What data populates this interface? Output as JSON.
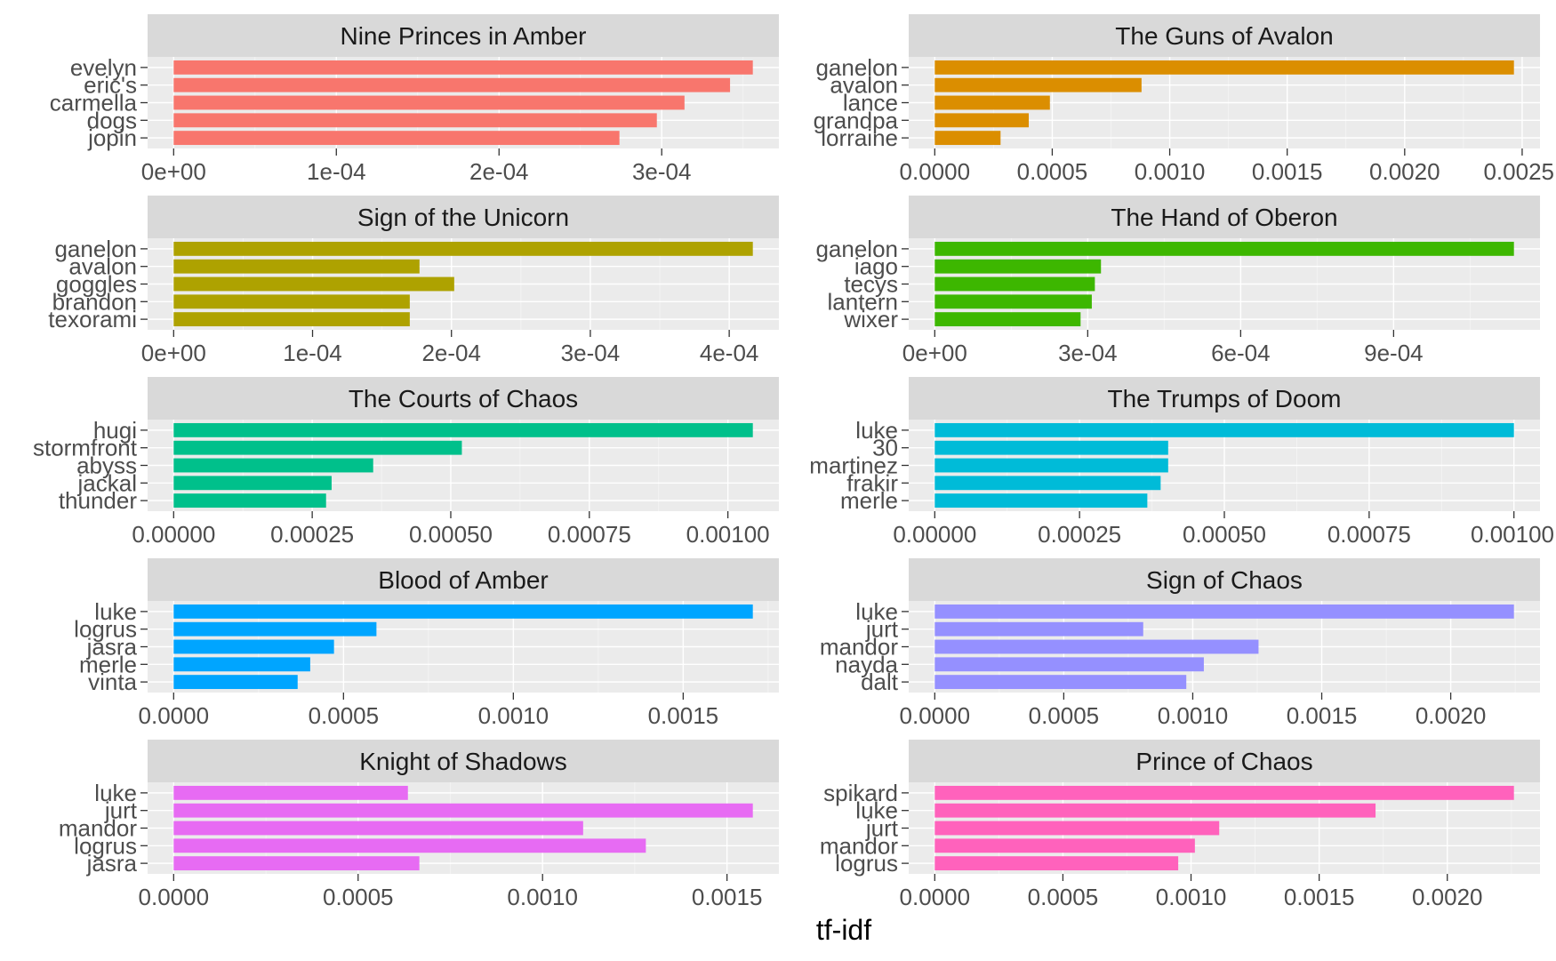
{
  "chart_data": {
    "type": "bar",
    "orientation": "horizontal",
    "layout": "facet_wrap 5x2, free scales",
    "xlabel": "tf-idf",
    "ylabel": "",
    "grid": true,
    "legend": "none",
    "panels": [
      {
        "title": "Nine Princes in Amber",
        "color": "#F8766D",
        "categories": [
          "evelyn",
          "eric's",
          "carmella",
          "dogs",
          "jopin"
        ],
        "values": [
          0.000356,
          0.000342,
          0.000314,
          0.000297,
          0.000274
        ],
        "xlim": [
          0,
          0.000356
        ],
        "ticks": [
          0,
          0.0001,
          0.0002,
          0.0003
        ],
        "tick_labels": [
          "0e+00",
          "1e-04",
          "2e-04",
          "3e-04"
        ]
      },
      {
        "title": "The Guns of Avalon",
        "color": "#DB8E00",
        "categories": [
          "ganelon",
          "avalon",
          "lance",
          "grandpa",
          "lorraine"
        ],
        "values": [
          0.002465,
          0.00088,
          0.00049,
          0.0004,
          0.00028
        ],
        "xlim": [
          0,
          0.002465
        ],
        "ticks": [
          0,
          0.0005,
          0.001,
          0.0015,
          0.002,
          0.0025
        ],
        "tick_labels": [
          "0.0000",
          "0.0005",
          "0.0010",
          "0.0015",
          "0.0020",
          "0.0025"
        ]
      },
      {
        "title": "Sign of the Unicorn",
        "color": "#AEA200",
        "categories": [
          "ganelon",
          "avalon",
          "goggles",
          "brandon",
          "texorami"
        ],
        "values": [
          0.000417,
          0.000177,
          0.000202,
          0.00017,
          0.00017
        ],
        "xlim": [
          0,
          0.000417
        ],
        "ticks": [
          0,
          0.0001,
          0.0002,
          0.0003,
          0.0004
        ],
        "tick_labels": [
          "0e+00",
          "1e-04",
          "2e-04",
          "3e-04",
          "4e-04"
        ]
      },
      {
        "title": "The Hand of Oberon",
        "color": "#3DB700",
        "categories": [
          "ganelon",
          "iago",
          "tecys",
          "lantern",
          "wixer"
        ],
        "values": [
          0.001136,
          0.000326,
          0.000314,
          0.000308,
          0.000286
        ],
        "xlim": [
          0,
          0.001136
        ],
        "ticks": [
          0,
          0.0003,
          0.0006,
          0.0009
        ],
        "tick_labels": [
          "0e+00",
          "3e-04",
          "6e-04",
          "9e-04"
        ]
      },
      {
        "title": "The Courts of Chaos",
        "color": "#00C08B",
        "categories": [
          "hugi",
          "stormfront",
          "abyss",
          "jackal",
          "thunder"
        ],
        "values": [
          0.001045,
          0.00052,
          0.00036,
          0.000285,
          0.000275
        ],
        "xlim": [
          0,
          0.001045
        ],
        "ticks": [
          0,
          0.00025,
          0.0005,
          0.00075,
          0.001
        ],
        "tick_labels": [
          "0.00000",
          "0.00025",
          "0.00050",
          "0.00075",
          "0.00100"
        ]
      },
      {
        "title": "The Trumps of Doom",
        "color": "#00BBD8",
        "categories": [
          "luke",
          "30",
          "martinez",
          "frakir",
          "merle"
        ],
        "values": [
          0.001,
          0.000403,
          0.000403,
          0.00039,
          0.000367
        ],
        "xlim": [
          0,
          0.001
        ],
        "ticks": [
          0,
          0.00025,
          0.0005,
          0.00075,
          0.001
        ],
        "tick_labels": [
          "0.00000",
          "0.00025",
          "0.00050",
          "0.00075",
          "0.00100"
        ]
      },
      {
        "title": "Blood of Amber",
        "color": "#00A5FF",
        "categories": [
          "luke",
          "logrus",
          "jasra",
          "merle",
          "vinta"
        ],
        "values": [
          0.001705,
          0.000597,
          0.000472,
          0.000402,
          0.000365
        ],
        "xlim": [
          0,
          0.001705
        ],
        "ticks": [
          0,
          0.0005,
          0.001,
          0.0015
        ],
        "tick_labels": [
          "0.0000",
          "0.0005",
          "0.0010",
          "0.0015"
        ]
      },
      {
        "title": "Sign of Chaos",
        "color": "#9590FF",
        "categories": [
          "luke",
          "jurt",
          "mandor",
          "nayda",
          "dalt"
        ],
        "values": [
          0.002245,
          0.000808,
          0.001255,
          0.001043,
          0.000975
        ],
        "xlim": [
          0,
          0.002245
        ],
        "ticks": [
          0,
          0.0005,
          0.001,
          0.0015,
          0.002
        ],
        "tick_labels": [
          "0.0000",
          "0.0005",
          "0.0010",
          "0.0015",
          "0.0020"
        ]
      },
      {
        "title": "Knight of Shadows",
        "color": "#E76BF3",
        "categories": [
          "luke",
          "jurt",
          "mandor",
          "logrus",
          "jasra"
        ],
        "values": [
          0.000635,
          0.00157,
          0.00111,
          0.00128,
          0.000666
        ],
        "xlim": [
          0,
          0.00157
        ],
        "ticks": [
          0,
          0.0005,
          0.001,
          0.0015
        ],
        "tick_labels": [
          "0.0000",
          "0.0005",
          "0.0010",
          "0.0015"
        ]
      },
      {
        "title": "Prince of Chaos",
        "color": "#FF62BC",
        "categories": [
          "spikard",
          "luke",
          "jurt",
          "mandor",
          "logrus"
        ],
        "values": [
          0.00226,
          0.00172,
          0.00111,
          0.001015,
          0.00095
        ],
        "xlim": [
          0,
          0.00226
        ],
        "ticks": [
          0,
          0.0005,
          0.001,
          0.0015,
          0.002
        ],
        "tick_labels": [
          "0.0000",
          "0.0005",
          "0.0010",
          "0.0015",
          "0.0020"
        ]
      }
    ]
  }
}
